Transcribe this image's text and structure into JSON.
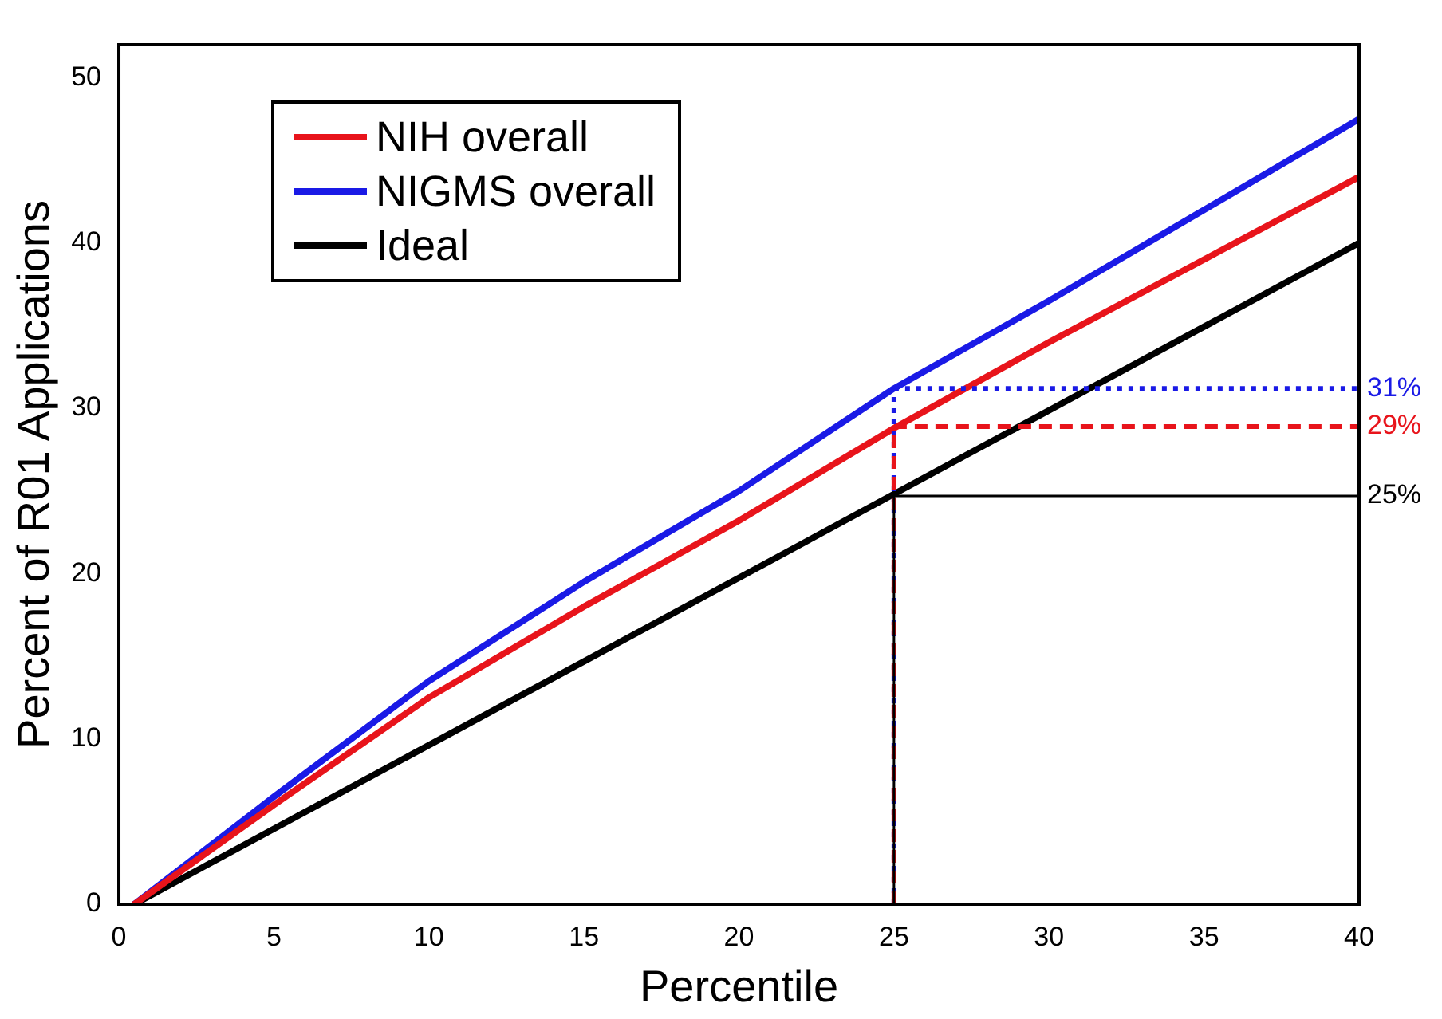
{
  "chart_data": {
    "type": "line",
    "xlabel": "Percentile",
    "ylabel": "Percent of R01 Applications",
    "series": [
      {
        "name": "NIH overall",
        "color": "#e8141b",
        "x": [
          0.5,
          5,
          10,
          15,
          20,
          25,
          30,
          35,
          40
        ],
        "values": [
          0,
          6,
          12.5,
          18,
          23.2,
          28.8,
          34,
          39,
          44
        ]
      },
      {
        "name": "NIGMS overall",
        "color": "#1a1ae6",
        "x": [
          0.5,
          5,
          10,
          15,
          20,
          25,
          30,
          35,
          40
        ],
        "values": [
          0,
          6.5,
          13.5,
          19.5,
          25,
          31.2,
          36.5,
          42,
          47.5
        ]
      },
      {
        "name": "Ideal",
        "color": "#000000",
        "x": [
          0.5,
          40
        ],
        "values": [
          0,
          40
        ]
      }
    ],
    "xlim": [
      0,
      40
    ],
    "xticks": [
      0,
      5,
      10,
      15,
      20,
      25,
      30,
      35,
      40
    ],
    "ylim": [
      0,
      52
    ],
    "yticks": [
      0,
      10,
      20,
      30,
      40,
      50
    ],
    "ref_lines": [
      {
        "axis": "x",
        "value": 25,
        "color": "#1a1ae6",
        "line_style": "dotted"
      },
      {
        "axis": "x",
        "value": 25,
        "color": "#e8141b",
        "line_style": "dashed"
      },
      {
        "axis": "x",
        "value": 25,
        "color": "#000000",
        "line_style": "solid"
      },
      {
        "axis": "y",
        "value": 31.2,
        "label": "31%",
        "color": "#1a1ae6",
        "line_style": "dotted"
      },
      {
        "axis": "y",
        "value": 28.9,
        "label": "29%",
        "color": "#e8141b",
        "line_style": "dashed"
      },
      {
        "axis": "y",
        "value": 24.7,
        "label": "25%",
        "color": "#000000",
        "line_style": "solid"
      }
    ],
    "grid": false,
    "legend": "top left",
    "marker": "none",
    "line_style": "solid"
  }
}
